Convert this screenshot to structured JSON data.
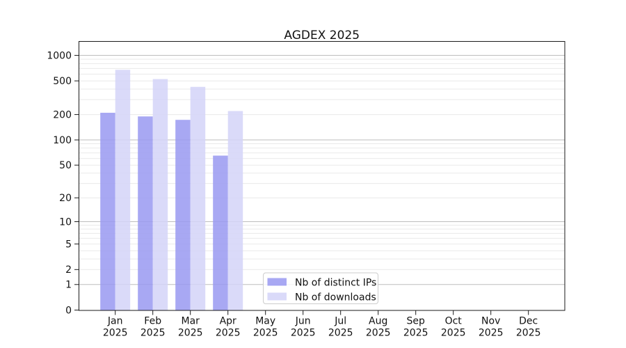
{
  "chart_data": {
    "type": "bar",
    "title": "AGDEX 2025",
    "categories": [
      "Jan",
      "Feb",
      "Mar",
      "Apr",
      "May",
      "Jun",
      "Jul",
      "Aug",
      "Sep",
      "Oct",
      "Nov",
      "Dec"
    ],
    "year_label": "2025",
    "series": [
      {
        "name": "Nb of distinct IPs",
        "color": "#9999f1",
        "values": [
          210,
          190,
          173,
          65,
          null,
          null,
          null,
          null,
          null,
          null,
          null,
          null
        ]
      },
      {
        "name": "Nb of downloads",
        "color": "#d3d3f8",
        "values": [
          675,
          525,
          425,
          220,
          null,
          null,
          null,
          null,
          null,
          null,
          null,
          null
        ]
      }
    ],
    "bar_opacity": 0.85,
    "y_axis": {
      "scale": "symlog",
      "ylim": [
        0,
        1460
      ],
      "ticks": [
        0,
        1,
        2,
        5,
        10,
        20,
        50,
        100,
        200,
        500,
        1000
      ],
      "major_gridlines": [
        1,
        10,
        100,
        1000
      ],
      "minor_gridlines": [
        2,
        3,
        4,
        5,
        6,
        7,
        8,
        9,
        20,
        30,
        40,
        50,
        60,
        70,
        80,
        90,
        200,
        300,
        400,
        500,
        600,
        700,
        800,
        900
      ]
    },
    "x_axis": {
      "tick_count": 12
    },
    "legend": {
      "position": "bottom-center",
      "entries": [
        "Nb of distinct IPs",
        "Nb of downloads"
      ]
    },
    "grid": true,
    "colors": {
      "major_grid": "#bdbdbd",
      "minor_grid": "#e9e9e9",
      "axis": "#1a1a1a",
      "text": "#111111",
      "legend_border": "#cccccc",
      "background": "#ffffff"
    }
  }
}
